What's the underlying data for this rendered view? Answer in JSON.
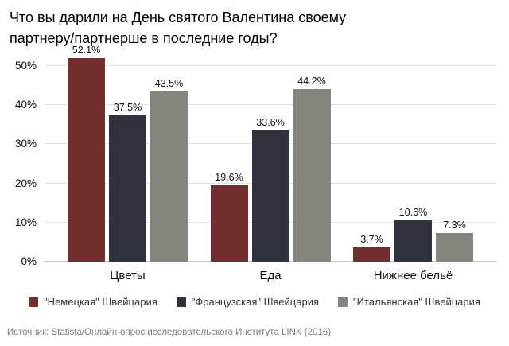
{
  "chart_data": {
    "type": "bar",
    "title": "Что вы дарили на День святого Валентина своему\nпартнеру/партнерше в последние годы?",
    "categories": [
      "Цветы",
      "Еда",
      "Нижнее бельё"
    ],
    "series": [
      {
        "name": "\"Немецкая\" Швейцария",
        "color": "#722F2E",
        "values": [
          52.1,
          19.6,
          3.7
        ]
      },
      {
        "name": "\"Французская\" Швейцария",
        "color": "#2E333D",
        "values": [
          37.5,
          33.6,
          10.6
        ]
      },
      {
        "name": "\"Итальянская\" Швейцария",
        "color": "#82857B",
        "values": [
          43.5,
          44.2,
          7.3
        ]
      }
    ],
    "xlabel": "",
    "ylabel": "",
    "ylim": [
      0,
      53.25
    ],
    "y_ticks": [
      0,
      10,
      20,
      30,
      40,
      50
    ],
    "tick_suffix": "%",
    "value_suffix": "%",
    "grid": true,
    "legend_position": "bottom"
  },
  "source": "Источник: Statista/Онлайн-опрос исследовательского Института LINK (2016)",
  "colors": {
    "grid": "#e3e3e3",
    "baseline": "#c9c9c9",
    "text": "#111111",
    "source_text": "#7d7d7d"
  }
}
